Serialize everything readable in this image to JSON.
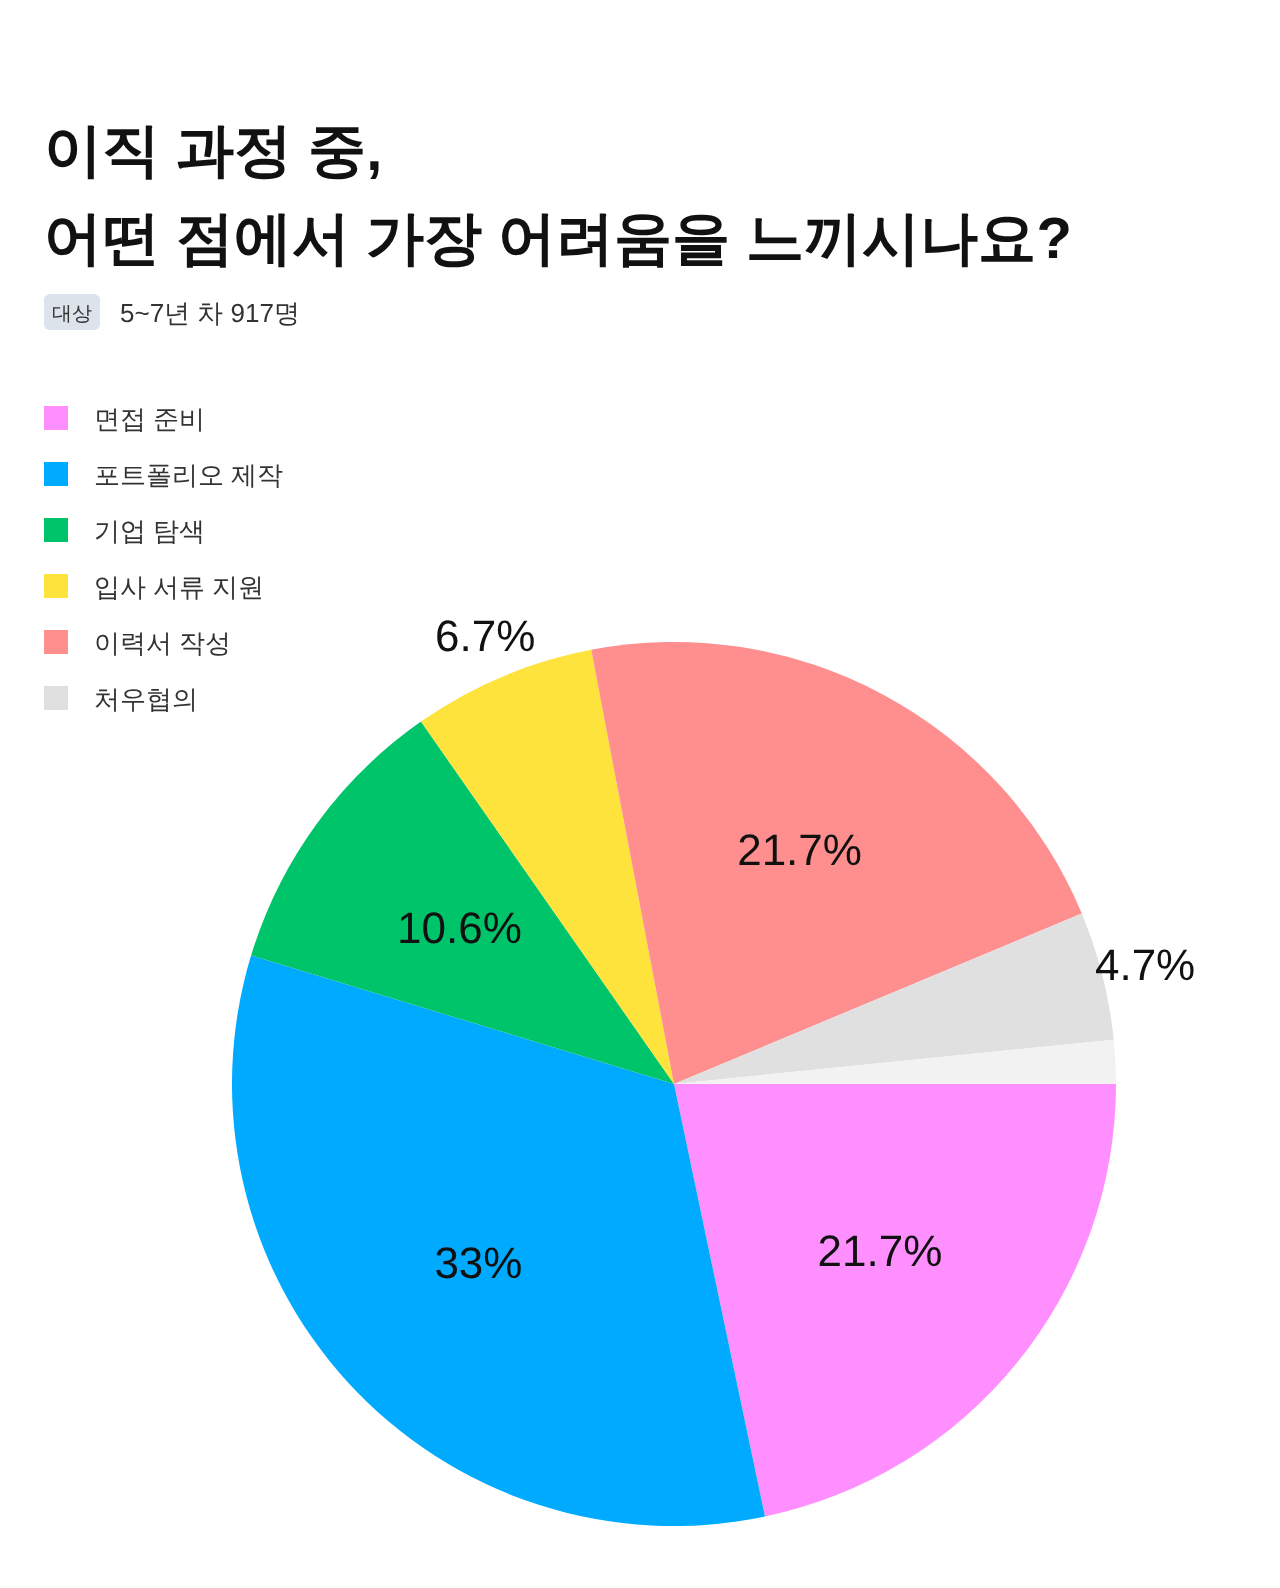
{
  "chart_data": {
    "type": "pie",
    "title": "이직 과정 중,\n어떤 점에서 가장 어려움을 느끼시나요?",
    "subtitle": "5~7년 차 917명",
    "annotations": [
      "대상"
    ],
    "categories": [
      "면접 준비",
      "포트폴리오 제작",
      "기업 탐색",
      "입사 서류 지원",
      "이력서 작성",
      "처우협의",
      null
    ],
    "values": [
      21.7,
      33,
      10.6,
      6.7,
      21.7,
      4.7,
      1.6
    ],
    "colors": [
      "#ff8fff",
      "#00aaff",
      "#00c46a",
      "#ffe33d",
      "#ff8f8f",
      "#e0e0e0",
      "#f2f2f2"
    ],
    "value_labels": [
      "21.7%",
      "33%",
      "10.6%",
      "6.7%",
      "21.7%",
      "4.7%",
      null
    ],
    "legend": "top left"
  }
}
